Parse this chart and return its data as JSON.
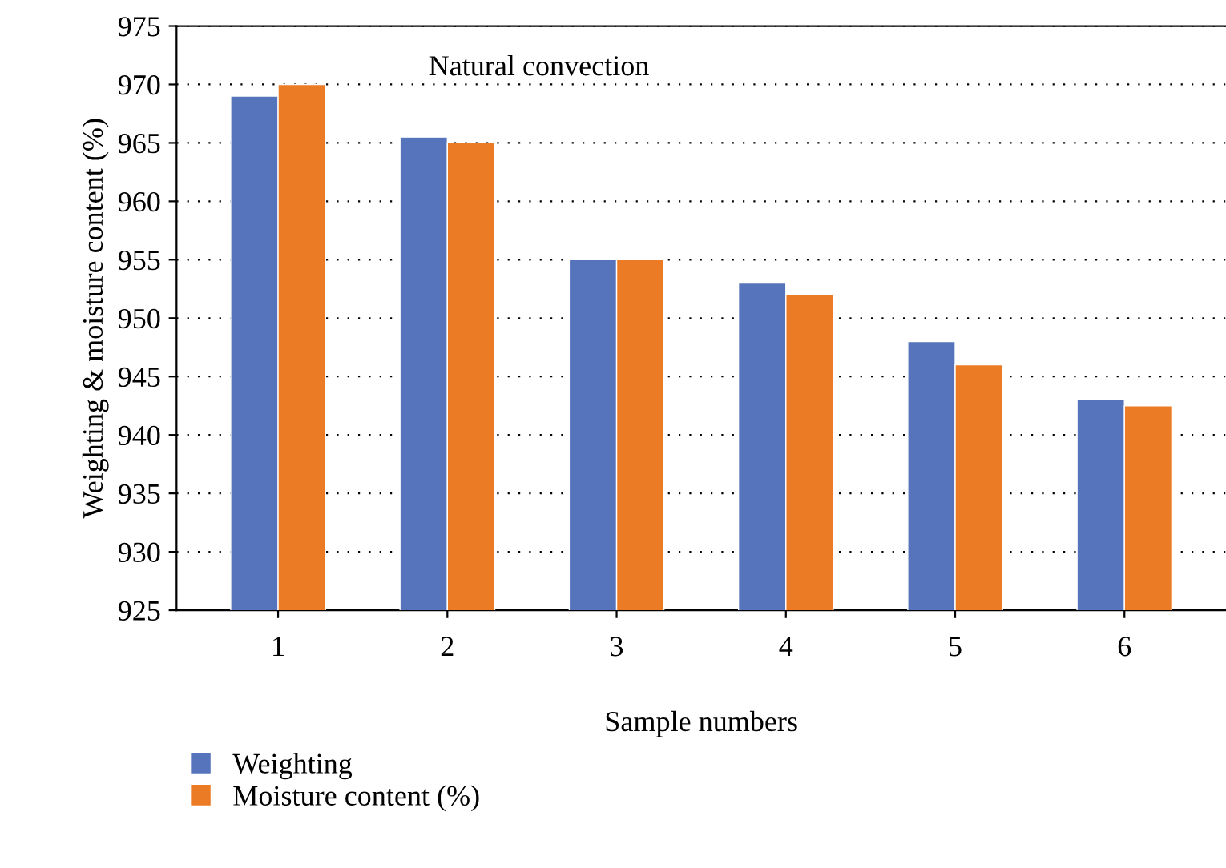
{
  "chart_data": {
    "type": "bar",
    "title": "Natural convection",
    "xlabel": "Sample numbers",
    "ylabel": "Weighting & moisture content (%)",
    "categories": [
      "1",
      "2",
      "3",
      "4",
      "5",
      "6"
    ],
    "series": [
      {
        "name": "Weighting",
        "color": "#5574bc",
        "values": [
          969,
          965.5,
          955,
          953,
          948,
          943
        ]
      },
      {
        "name": "Moisture content (%)",
        "color": "#ec7b26",
        "values": [
          970,
          965,
          955,
          952,
          946,
          942.5
        ]
      }
    ],
    "ylim": [
      925,
      975
    ],
    "yticks": [
      925,
      930,
      935,
      940,
      945,
      950,
      955,
      960,
      965,
      970,
      975
    ],
    "grid": "y",
    "legend": "bottom left"
  }
}
